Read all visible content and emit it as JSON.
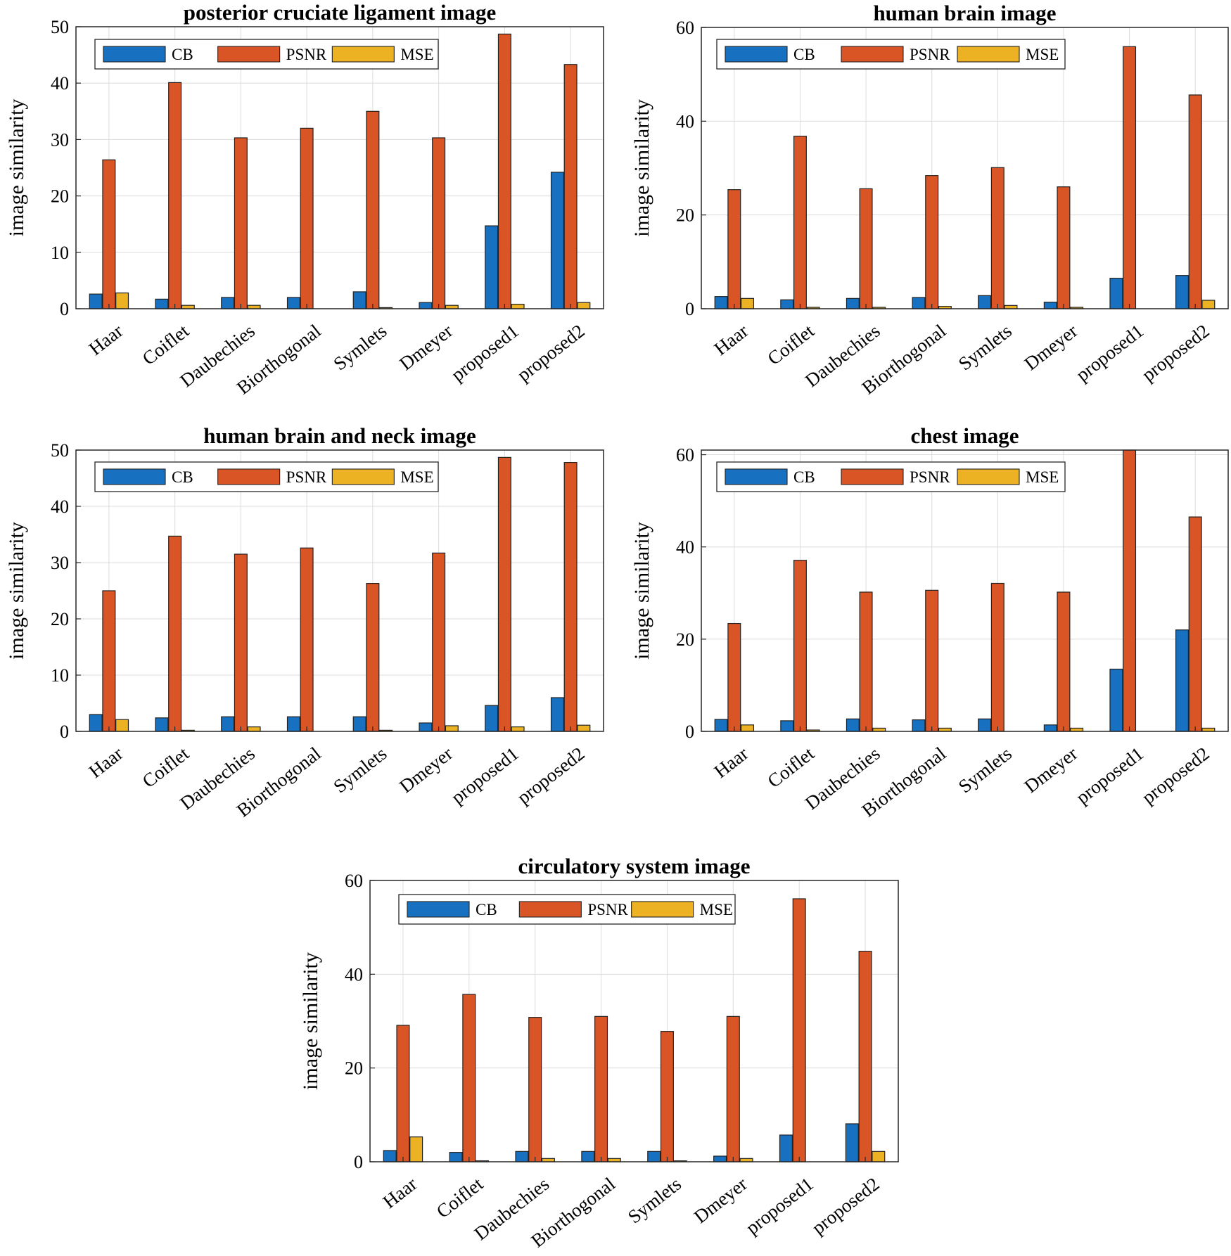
{
  "legend": [
    "CB",
    "PSNR",
    "MSE"
  ],
  "colors": {
    "CB": "#1770c0",
    "PSNR": "#d95526",
    "MSE": "#ecb224"
  },
  "chart_data": [
    {
      "type": "bar",
      "title": "posterior cruciate ligament image",
      "xlabel": "",
      "ylabel": "image similarity",
      "ylim": [
        0,
        50
      ],
      "yticks": [
        0,
        10,
        20,
        30,
        40,
        50
      ],
      "grid": true,
      "legend_position": "top",
      "categories": [
        "Haar",
        "Coiflet",
        "Daubechies",
        "Biorthogonal",
        "Symlets",
        "Dmeyer",
        "proposed1",
        "proposed2"
      ],
      "series": [
        {
          "name": "CB",
          "values": [
            2.6,
            1.7,
            2.0,
            2.0,
            3.0,
            1.1,
            14.7,
            24.2
          ]
        },
        {
          "name": "PSNR",
          "values": [
            26.4,
            40.1,
            30.3,
            32.0,
            35.0,
            30.3,
            48.7,
            43.3
          ]
        },
        {
          "name": "MSE",
          "values": [
            2.8,
            0.6,
            0.6,
            0.0,
            0.2,
            0.6,
            0.8,
            1.1
          ]
        }
      ]
    },
    {
      "type": "bar",
      "title": "human brain image",
      "xlabel": "",
      "ylabel": "image similarity",
      "ylim": [
        0,
        60
      ],
      "yticks": [
        0,
        20,
        40,
        60
      ],
      "grid": true,
      "legend_position": "top",
      "categories": [
        "Haar",
        "Coiflet",
        "Daubechies",
        "Biorthogonal",
        "Symlets",
        "Dmeyer",
        "proposed1",
        "proposed2"
      ],
      "series": [
        {
          "name": "CB",
          "values": [
            2.6,
            1.9,
            2.2,
            2.4,
            2.8,
            1.4,
            6.5,
            7.1
          ]
        },
        {
          "name": "PSNR",
          "values": [
            25.4,
            36.8,
            25.6,
            28.4,
            30.1,
            26.0,
            55.9,
            45.6
          ]
        },
        {
          "name": "MSE",
          "values": [
            2.2,
            0.3,
            0.3,
            0.5,
            0.7,
            0.3,
            0.0,
            1.8
          ]
        }
      ]
    },
    {
      "type": "bar",
      "title": "human brain and neck image",
      "xlabel": "",
      "ylabel": "image similarity",
      "ylim": [
        0,
        50
      ],
      "yticks": [
        0,
        10,
        20,
        30,
        40,
        50
      ],
      "grid": true,
      "legend_position": "top",
      "categories": [
        "Haar",
        "Coiflet",
        "Daubechies",
        "Biorthogonal",
        "Symlets",
        "Dmeyer",
        "proposed1",
        "proposed2"
      ],
      "series": [
        {
          "name": "CB",
          "values": [
            3.0,
            2.4,
            2.6,
            2.6,
            2.6,
            1.5,
            4.6,
            6.0
          ]
        },
        {
          "name": "PSNR",
          "values": [
            25.0,
            34.7,
            31.5,
            32.6,
            26.3,
            31.7,
            48.7,
            47.8
          ]
        },
        {
          "name": "MSE",
          "values": [
            2.1,
            0.2,
            0.8,
            0.0,
            0.2,
            1.0,
            0.8,
            1.1
          ]
        }
      ]
    },
    {
      "type": "bar",
      "title": "chest image",
      "xlabel": "",
      "ylabel": "image similarity",
      "ylim": [
        0,
        61
      ],
      "yticks": [
        0,
        20,
        40,
        60
      ],
      "grid": true,
      "legend_position": "top",
      "categories": [
        "Haar",
        "Coiflet",
        "Daubechies",
        "Biorthogonal",
        "Symlets",
        "Dmeyer",
        "proposed1",
        "proposed2"
      ],
      "series": [
        {
          "name": "CB",
          "values": [
            2.6,
            2.3,
            2.7,
            2.5,
            2.7,
            1.4,
            13.5,
            22.0
          ]
        },
        {
          "name": "PSNR",
          "values": [
            23.4,
            37.1,
            30.2,
            30.6,
            32.1,
            30.2,
            61.0,
            46.5
          ]
        },
        {
          "name": "MSE",
          "values": [
            1.4,
            0.3,
            0.7,
            0.7,
            0.0,
            0.7,
            0.0,
            0.7
          ]
        }
      ]
    },
    {
      "type": "bar",
      "title": "circulatory system image",
      "xlabel": "",
      "ylabel": "image similarity",
      "ylim": [
        0,
        60
      ],
      "yticks": [
        0,
        20,
        40,
        60
      ],
      "grid": true,
      "legend_position": "top",
      "categories": [
        "Haar",
        "Coiflet",
        "Daubechies",
        "Biorthogonal",
        "Symlets",
        "Dmeyer",
        "proposed1",
        "proposed2"
      ],
      "series": [
        {
          "name": "CB",
          "values": [
            2.4,
            2.0,
            2.2,
            2.2,
            2.2,
            1.2,
            5.7,
            8.1
          ]
        },
        {
          "name": "PSNR",
          "values": [
            29.1,
            35.7,
            30.8,
            31.0,
            27.8,
            31.0,
            56.1,
            44.9
          ]
        },
        {
          "name": "MSE",
          "values": [
            5.3,
            0.2,
            0.7,
            0.7,
            0.2,
            0.7,
            0.0,
            2.2
          ]
        }
      ]
    }
  ]
}
